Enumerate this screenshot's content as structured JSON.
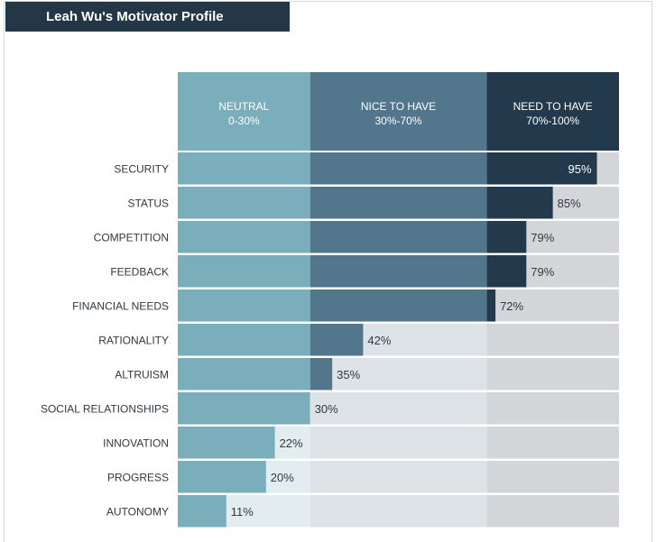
{
  "header": {
    "title": "Leah Wu's Motivator Profile"
  },
  "chart_data": {
    "type": "bar",
    "orientation": "horizontal",
    "title": "Leah Wu's Motivator Profile",
    "xlim": [
      0,
      100
    ],
    "bands": [
      {
        "name": "NEUTRAL",
        "range_label": "0-30%",
        "from": 0,
        "to": 30,
        "color": "#7aaeba",
        "track_color": "#e3ecee"
      },
      {
        "name": "NICE TO HAVE",
        "range_label": "30%-70%",
        "from": 30,
        "to": 70,
        "color": "#52768c",
        "track_color": "#dde2e6"
      },
      {
        "name": "NEED TO HAVE",
        "range_label": "70%-100%",
        "from": 70,
        "to": 100,
        "color": "#223a4c",
        "track_color": "#d2d6d9"
      }
    ],
    "categories": [
      "SECURITY",
      "STATUS",
      "COMPETITION",
      "FEEDBACK",
      "FINANCIAL NEEDS",
      "RATIONALITY",
      "ALTRUISM",
      "SOCIAL RELATIONSHIPS",
      "INNOVATION",
      "PROGRESS",
      "AUTONOMY"
    ],
    "values": [
      95,
      85,
      79,
      79,
      72,
      42,
      35,
      30,
      22,
      20,
      11
    ],
    "value_labels": [
      "95%",
      "85%",
      "79%",
      "79%",
      "72%",
      "42%",
      "35%",
      "30%",
      "22%",
      "20%",
      "11%"
    ]
  }
}
